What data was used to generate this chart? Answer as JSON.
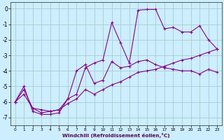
{
  "xlabel": "Windchill (Refroidissement éolien,°C)",
  "bg_color": "#cceeff",
  "grid_color": "#aacccc",
  "line_color": "#880088",
  "xlim": [
    -0.5,
    23.5
  ],
  "ylim": [
    -7.5,
    0.4
  ],
  "xticks": [
    0,
    1,
    2,
    3,
    4,
    5,
    6,
    7,
    8,
    9,
    10,
    11,
    12,
    13,
    14,
    15,
    16,
    17,
    18,
    19,
    20,
    21,
    22,
    23
  ],
  "yticks": [
    0,
    -1,
    -2,
    -3,
    -4,
    -5,
    -6,
    -7
  ],
  "x": [
    0,
    1,
    2,
    3,
    4,
    5,
    6,
    7,
    8,
    9,
    10,
    11,
    12,
    13,
    14,
    15,
    16,
    17,
    18,
    19,
    20,
    21,
    22,
    23
  ],
  "line1_y": [
    -6.0,
    -5.0,
    -6.6,
    -6.8,
    -6.8,
    -6.7,
    -5.8,
    -5.5,
    -3.8,
    -3.5,
    -3.3,
    -0.9,
    -2.2,
    -3.5,
    -0.1,
    -0.05,
    -0.05,
    -1.3,
    -1.2,
    -1.5,
    -1.5,
    -1.1,
    -2.0,
    -2.6
  ],
  "line2_y": [
    -6.0,
    -5.2,
    -6.4,
    -6.7,
    -6.6,
    -6.5,
    -5.8,
    -4.0,
    -3.6,
    -4.8,
    -4.6,
    -3.4,
    -3.8,
    -3.7,
    -3.4,
    -3.3,
    -3.6,
    -3.8,
    -3.9,
    -4.0,
    -4.0,
    -4.2,
    -3.9,
    -4.1
  ],
  "line3_y": [
    -6.0,
    -5.5,
    -6.4,
    -6.5,
    -6.6,
    -6.5,
    -6.1,
    -5.8,
    -5.2,
    -5.5,
    -5.2,
    -4.9,
    -4.7,
    -4.4,
    -4.1,
    -4.0,
    -3.9,
    -3.7,
    -3.5,
    -3.3,
    -3.2,
    -3.0,
    -2.8,
    -2.6
  ]
}
